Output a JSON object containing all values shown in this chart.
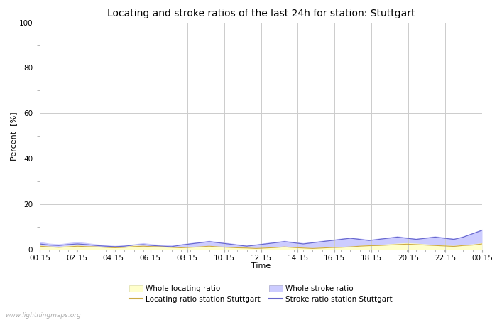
{
  "title": "Locating and stroke ratios of the last 24h for station: Stuttgart",
  "xlabel": "Time",
  "ylabel": "Percent  [%]",
  "ylim": [
    0,
    100
  ],
  "x_labels": [
    "00:15",
    "02:15",
    "04:15",
    "06:15",
    "08:15",
    "10:15",
    "12:15",
    "14:15",
    "16:15",
    "18:15",
    "20:15",
    "22:15",
    "00:15"
  ],
  "background_color": "#ffffff",
  "plot_bg_color": "#ffffff",
  "grid_color": "#cccccc",
  "watermark": "www.lightningmaps.org",
  "fill_locating_color": "#ffffcc",
  "fill_stroke_color": "#ccccff",
  "line_locating_color": "#ccaa44",
  "line_stroke_color": "#6666cc",
  "whole_locating": [
    2.0,
    1.5,
    1.3,
    1.8,
    2.0,
    1.7,
    1.5,
    1.2,
    1.0,
    1.5,
    2.0,
    1.8,
    1.6,
    1.4,
    1.2,
    1.0,
    1.2,
    1.5,
    1.8,
    1.5,
    1.3,
    1.2,
    1.0,
    0.8,
    1.0,
    1.2,
    1.5,
    1.2,
    1.0,
    0.8,
    1.0,
    1.2,
    1.3,
    1.5,
    1.8,
    2.0,
    2.2,
    2.5,
    2.8,
    3.0,
    2.8,
    2.5,
    2.2,
    2.0,
    1.8,
    2.2,
    2.5,
    3.0
  ],
  "locating_station": [
    1.5,
    1.2,
    1.0,
    1.2,
    1.5,
    1.3,
    1.2,
    1.0,
    0.8,
    1.0,
    1.3,
    1.5,
    1.3,
    1.2,
    1.0,
    0.8,
    1.0,
    1.2,
    1.5,
    1.2,
    1.0,
    0.8,
    0.7,
    0.5,
    0.7,
    0.9,
    1.2,
    0.9,
    0.7,
    0.5,
    0.7,
    0.9,
    1.0,
    1.2,
    1.5,
    1.7,
    1.8,
    2.0,
    2.2,
    2.4,
    2.2,
    2.0,
    1.8,
    1.6,
    1.4,
    1.8,
    2.0,
    2.5
  ],
  "whole_stroke": [
    3.5,
    2.8,
    2.5,
    3.0,
    3.5,
    3.0,
    2.5,
    2.0,
    1.8,
    2.0,
    2.5,
    3.0,
    2.5,
    2.2,
    2.0,
    2.5,
    3.0,
    3.5,
    4.0,
    3.5,
    3.0,
    2.5,
    2.0,
    2.5,
    3.0,
    3.5,
    4.0,
    3.5,
    3.0,
    3.5,
    4.0,
    4.5,
    5.0,
    5.5,
    5.0,
    4.5,
    5.0,
    5.5,
    6.0,
    5.5,
    5.0,
    5.5,
    6.0,
    5.5,
    5.0,
    6.0,
    7.5,
    9.0
  ],
  "stroke_station": [
    2.5,
    2.0,
    1.8,
    2.2,
    2.5,
    2.2,
    1.8,
    1.5,
    1.3,
    1.5,
    2.0,
    2.2,
    1.8,
    1.5,
    1.3,
    2.0,
    2.5,
    3.0,
    3.5,
    3.0,
    2.5,
    2.0,
    1.5,
    2.0,
    2.5,
    3.0,
    3.5,
    3.0,
    2.5,
    3.0,
    3.5,
    4.0,
    4.5,
    5.0,
    4.5,
    4.0,
    4.5,
    5.0,
    5.5,
    5.0,
    4.5,
    5.0,
    5.5,
    5.0,
    4.5,
    5.5,
    7.0,
    8.5
  ],
  "title_fontsize": 10,
  "label_fontsize": 8,
  "tick_fontsize": 7.5
}
